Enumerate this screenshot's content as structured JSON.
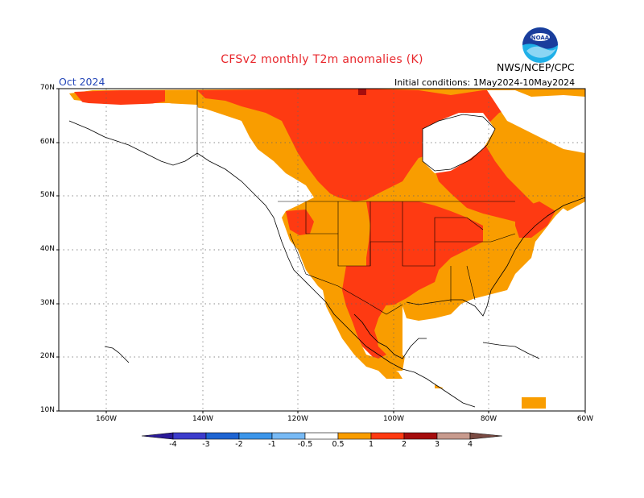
{
  "header": {
    "title": "CFSv2 monthly T2m anomalies (K)",
    "valid_month": "Oct 2024",
    "initial_conditions": "Initial conditions: 1May2024-10May2024",
    "agency": "NWS/NCEP/CPC",
    "logo_text": "NOAA"
  },
  "map": {
    "latitude_labels": [
      "70N",
      "60N",
      "50N",
      "40N",
      "30N",
      "20N",
      "10N"
    ],
    "longitude_labels": [
      "160W",
      "140W",
      "120W",
      "100W",
      "80W",
      "60W"
    ],
    "gridlines": "dotted",
    "anomaly_regions": [
      {
        "region": "Canada Arctic / northern Canada",
        "category": "1 to 2"
      },
      {
        "region": "Alaska North Slope coast",
        "category": "1 to 2"
      },
      {
        "region": "Pacific Northwest & interior West US",
        "category": "0.5 to 1"
      },
      {
        "region": "Central Plains / Great Lakes",
        "category": "1 to 2"
      },
      {
        "region": "Southeast US",
        "category": "0.5 to 1"
      },
      {
        "region": "Texas / Mexico interior",
        "category": "1 to 2"
      },
      {
        "region": "Eastern Canada / Newfoundland",
        "category": "0.5 to 1"
      },
      {
        "region": "Hudson Bay",
        "category": "below 0.5"
      },
      {
        "region": "Interior Alaska / Yukon",
        "category": "below 0.5"
      }
    ]
  },
  "colorbar": {
    "labels": [
      "-4",
      "-3",
      "-2",
      "-1",
      "-0.5",
      "0.5",
      "1",
      "2",
      "3",
      "4"
    ],
    "colors": [
      "#2a1a99",
      "#3c3ccc",
      "#1e64d2",
      "#3c96ea",
      "#78baf5",
      "#ffffff",
      "#f99d00",
      "#fe3a12",
      "#a50d0d",
      "#c89b8e",
      "#7a4b43"
    ]
  },
  "colors": {
    "ocean_land_neutral": "#ffffff",
    "anomaly_0_5_to_1": "#f99d00",
    "anomaly_1_to_2": "#fe3a12",
    "anomaly_2_to_3": "#a50d0d",
    "title_red": "#e8262b",
    "month_blue": "#2446b8"
  }
}
